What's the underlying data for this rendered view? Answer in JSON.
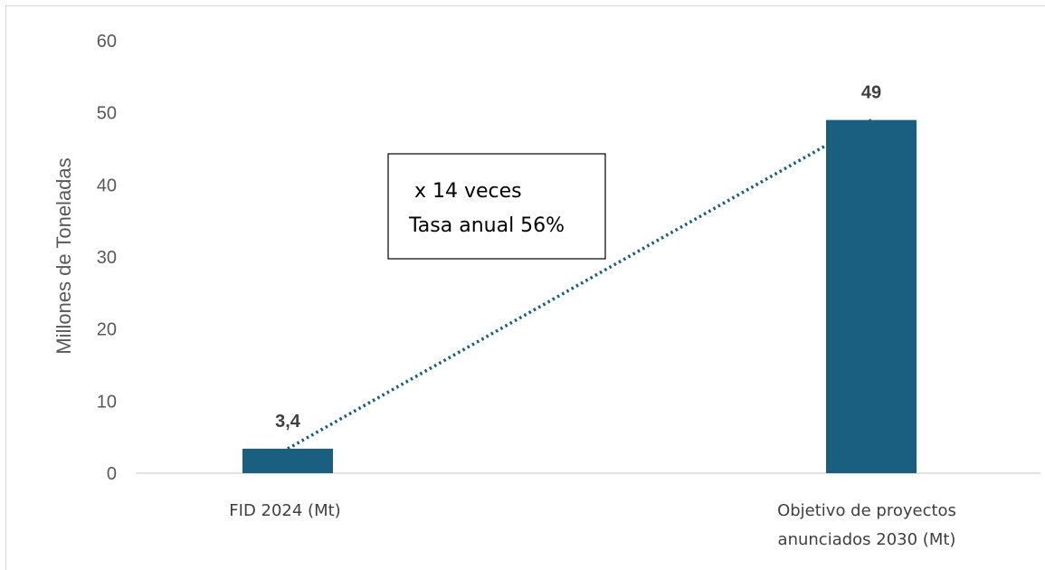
{
  "chart_data": {
    "type": "bar",
    "categories": [
      [
        "FID 2024 (Mt)"
      ],
      [
        "Objetivo de proyectos",
        "anunciados 2030 (Mt)"
      ]
    ],
    "values": [
      3.4,
      49
    ],
    "data_labels": [
      "3,4",
      "49"
    ],
    "ylabel": "Millones de Toneladas",
    "ylim": [
      0,
      60
    ],
    "yticks": [
      0,
      10,
      20,
      30,
      40,
      50,
      60
    ],
    "grid": false,
    "legend": "none",
    "bar_color": "#1a5f80",
    "trendline": {
      "style": "dotted",
      "color": "#1a5f80",
      "from_category": 0,
      "to_category": 1
    },
    "annotation": [
      "x 14  veces",
      "Tasa anual 56%"
    ]
  }
}
